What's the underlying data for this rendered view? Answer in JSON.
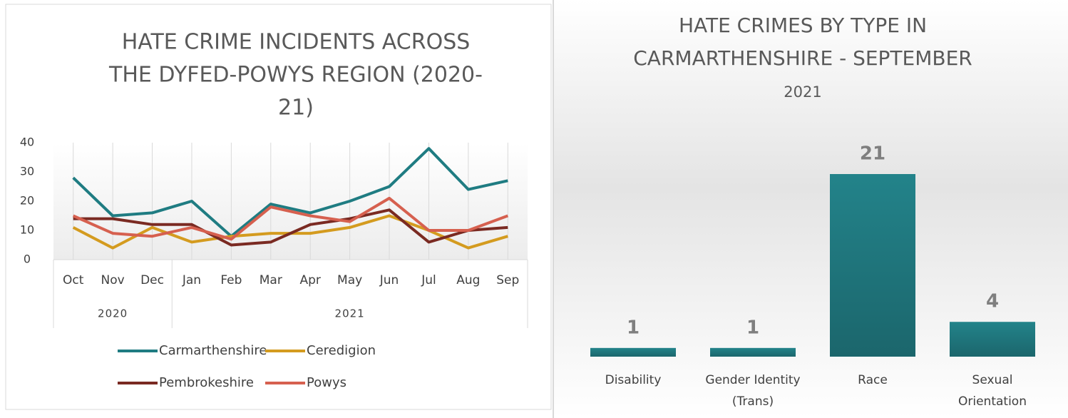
{
  "chart_data": [
    {
      "type": "line",
      "title_lines": [
        "HATE CRIME INCIDENTS ACROSS",
        "THE DYFED-POWYS REGION (2020-",
        "21)"
      ],
      "groups": [
        {
          "label": "2020",
          "categories": [
            "Oct",
            "Nov",
            "Dec"
          ]
        },
        {
          "label": "2021",
          "categories": [
            "Jan",
            "Feb",
            "Mar",
            "Apr",
            "May",
            "Jun",
            "Jul",
            "Aug",
            "Sep"
          ]
        }
      ],
      "series": [
        {
          "name": "Carmarthenshire",
          "color": "#1f7c82",
          "values": [
            28,
            15,
            16,
            20,
            8,
            19,
            16,
            20,
            25,
            38,
            24,
            27
          ]
        },
        {
          "name": "Ceredigion",
          "color": "#d49b1f",
          "values": [
            11,
            4,
            11,
            6,
            8,
            9,
            9,
            11,
            15,
            10,
            4,
            8
          ]
        },
        {
          "name": "Pembrokeshire",
          "color": "#7a2a22",
          "values": [
            14,
            14,
            12,
            12,
            5,
            6,
            12,
            14,
            17,
            6,
            10,
            11
          ]
        },
        {
          "name": "Powys",
          "color": "#d6604f",
          "values": [
            15,
            9,
            8,
            11,
            7,
            18,
            15,
            13,
            21,
            10,
            10,
            15
          ]
        }
      ],
      "ylim": [
        0,
        40
      ],
      "yticks": [
        0,
        10,
        20,
        30,
        40
      ],
      "legend": "bottom"
    },
    {
      "type": "bar",
      "title_lines": [
        "HATE CRIMES BY TYPE IN",
        "CARMARTHENSHIRE - SEPTEMBER"
      ],
      "subtitle": "2021",
      "categories": [
        [
          "Disability"
        ],
        [
          "Gender Identity",
          "(Trans)"
        ],
        [
          "Race"
        ],
        [
          "Sexual",
          "Orientation"
        ]
      ],
      "values": [
        1,
        1,
        21,
        4
      ],
      "color": "#1f7c82"
    }
  ]
}
